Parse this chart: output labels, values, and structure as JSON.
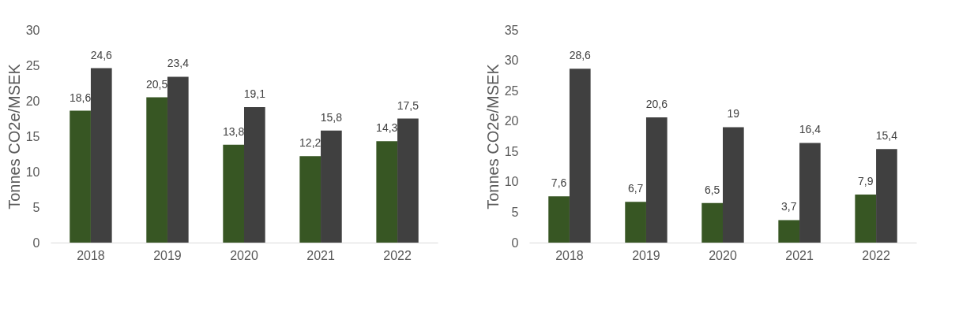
{
  "chart_data": [
    {
      "type": "bar",
      "ylabel": "Tonnes CO2e/MSEK",
      "categories": [
        "2018",
        "2019",
        "2020",
        "2021",
        "2022"
      ],
      "ylim": [
        0,
        30
      ],
      "yticks": [
        0,
        5,
        10,
        15,
        20,
        25,
        30
      ],
      "grid": false,
      "series": [
        {
          "color": "#375623",
          "values": [
            18.6,
            20.5,
            13.8,
            12.2,
            14.3
          ],
          "value_labels": [
            "18,6",
            "20,5",
            "13,8",
            "12,2",
            "14,3"
          ]
        },
        {
          "color": "#404040",
          "values": [
            24.6,
            23.4,
            19.1,
            15.8,
            17.5
          ],
          "value_labels": [
            "24,6",
            "23,4",
            "19,1",
            "15,8",
            "17,5"
          ]
        }
      ]
    },
    {
      "type": "bar",
      "ylabel": "Tonnes CO2e/MSEK",
      "categories": [
        "2018",
        "2019",
        "2020",
        "2021",
        "2022"
      ],
      "ylim": [
        0,
        35
      ],
      "yticks": [
        0,
        5,
        10,
        15,
        20,
        25,
        30,
        35
      ],
      "grid": false,
      "series": [
        {
          "color": "#375623",
          "values": [
            7.6,
            6.7,
            6.5,
            3.7,
            7.9
          ],
          "value_labels": [
            "7,6",
            "6,7",
            "6,5",
            "3,7",
            "7,9"
          ]
        },
        {
          "color": "#404040",
          "values": [
            28.6,
            20.6,
            19,
            16.4,
            15.4
          ],
          "value_labels": [
            "28,6",
            "20,6",
            "19",
            "16,4",
            "15,4"
          ]
        }
      ]
    }
  ]
}
